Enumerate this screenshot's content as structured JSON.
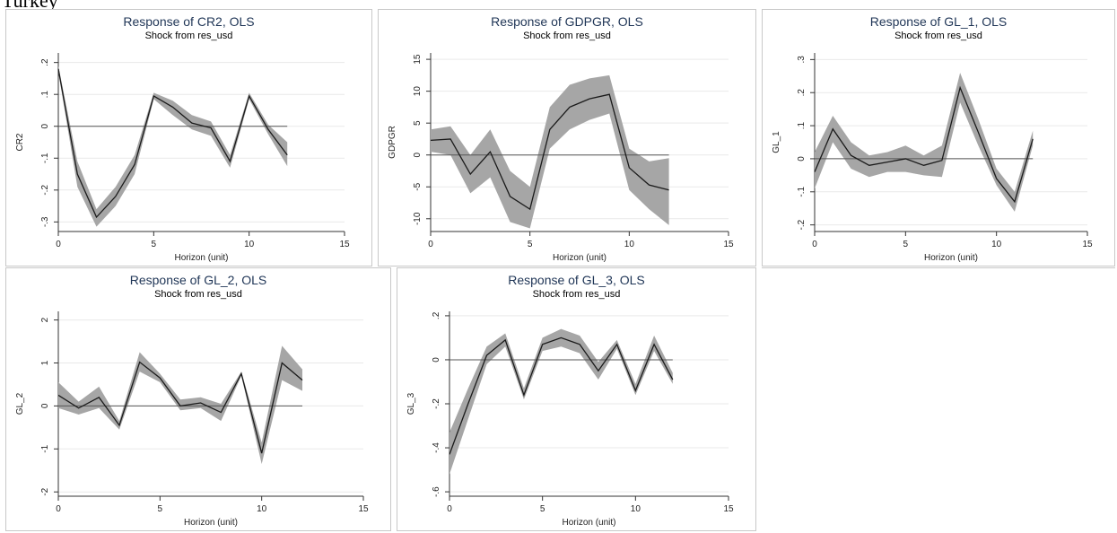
{
  "page": {
    "top_label": "Turkey"
  },
  "chart_data": [
    {
      "type": "line",
      "title": "Response of CR2, OLS",
      "subtitle": "Shock from res_usd",
      "xlabel": "Horizon (unit)",
      "ylabel": "CR2",
      "xlim": [
        0,
        15
      ],
      "ylim": [
        -0.33,
        0.23
      ],
      "xticks": [
        0,
        5,
        10,
        15
      ],
      "xtick_labels": [
        "0",
        "5",
        "10",
        "15"
      ],
      "yticks": [
        -0.3,
        -0.2,
        -0.1,
        0,
        0.1,
        0.2
      ],
      "ytick_labels": [
        "-.3",
        "-.2",
        "-.1",
        "0",
        ".1",
        ".2"
      ],
      "grid": true,
      "zero_line": true,
      "x": [
        0,
        1,
        2,
        3,
        4,
        5,
        6,
        7,
        8,
        9,
        10,
        11,
        12
      ],
      "series": [
        {
          "values": [
            0.18,
            -0.15,
            -0.285,
            -0.22,
            -0.12,
            0.095,
            0.06,
            0.01,
            -0.005,
            -0.11,
            0.095,
            -0.01,
            -0.09
          ]
        }
      ],
      "band_lower": [
        0.17,
        -0.19,
        -0.315,
        -0.25,
        -0.15,
        0.085,
        0.035,
        -0.01,
        -0.03,
        -0.13,
        0.085,
        -0.025,
        -0.125
      ],
      "band_upper": [
        0.19,
        -0.11,
        -0.26,
        -0.19,
        -0.09,
        0.105,
        0.08,
        0.035,
        0.015,
        -0.09,
        0.105,
        0.005,
        -0.05
      ]
    },
    {
      "type": "line",
      "title": "Response of GDPGR, OLS",
      "subtitle": "Shock from res_usd",
      "xlabel": "Horizon (unit)",
      "ylabel": "GDPGR",
      "xlim": [
        0,
        15
      ],
      "ylim": [
        -12,
        16
      ],
      "xticks": [
        0,
        5,
        10,
        15
      ],
      "xtick_labels": [
        "0",
        "5",
        "10",
        "15"
      ],
      "yticks": [
        -10,
        -5,
        0,
        5,
        10,
        15
      ],
      "ytick_labels": [
        "-10",
        "-5",
        "0",
        "5",
        "10",
        "15"
      ],
      "grid": true,
      "zero_line": true,
      "x": [
        0,
        1,
        2,
        3,
        4,
        5,
        6,
        7,
        8,
        9,
        10,
        11,
        12
      ],
      "series": [
        {
          "values": [
            2.3,
            2.5,
            -3.0,
            0.5,
            -6.5,
            -8.5,
            4.0,
            7.5,
            8.8,
            9.5,
            -2.0,
            -4.7,
            -5.5
          ]
        }
      ],
      "band_lower": [
        0.5,
        0.0,
        -6.0,
        -3.5,
        -10.5,
        -11.5,
        1.0,
        4.0,
        5.5,
        6.5,
        -5.5,
        -8.5,
        -11.0
      ],
      "band_upper": [
        4.0,
        4.5,
        0.0,
        4.0,
        -2.5,
        -5.0,
        7.5,
        11.0,
        12.0,
        12.5,
        1.0,
        -1.0,
        -0.5
      ]
    },
    {
      "type": "line",
      "title": "Response of GL_1, OLS",
      "subtitle": "Shock from res_usd",
      "xlabel": "Horizon (unit)",
      "ylabel": "GL_1",
      "xlim": [
        0,
        15
      ],
      "ylim": [
        -0.22,
        0.32
      ],
      "xticks": [
        0,
        5,
        10,
        15
      ],
      "xtick_labels": [
        "0",
        "5",
        "10",
        "15"
      ],
      "yticks": [
        -0.2,
        -0.1,
        0,
        0.1,
        0.2,
        0.3
      ],
      "ytick_labels": [
        "-.2",
        "-.1",
        "0",
        ".1",
        ".2",
        ".3"
      ],
      "grid": true,
      "zero_line": true,
      "x": [
        0,
        1,
        2,
        3,
        4,
        5,
        6,
        7,
        8,
        9,
        10,
        11,
        12
      ],
      "series": [
        {
          "values": [
            -0.04,
            0.09,
            0.01,
            -0.02,
            -0.01,
            0.0,
            -0.02,
            -0.005,
            0.215,
            0.08,
            -0.06,
            -0.13,
            0.06
          ]
        }
      ],
      "band_lower": [
        -0.09,
        0.05,
        -0.03,
        -0.055,
        -0.04,
        -0.04,
        -0.05,
        -0.055,
        0.17,
        0.04,
        -0.08,
        -0.16,
        0.04
      ],
      "band_upper": [
        0.02,
        0.13,
        0.05,
        0.01,
        0.02,
        0.04,
        0.01,
        0.04,
        0.26,
        0.12,
        -0.03,
        -0.1,
        0.085
      ]
    },
    {
      "type": "line",
      "title": "Response of GL_2, OLS",
      "subtitle": "Shock from res_usd",
      "xlabel": "Horizon (unit)",
      "ylabel": "GL_2",
      "xlim": [
        0,
        15
      ],
      "ylim": [
        -2.1,
        2.2
      ],
      "xticks": [
        0,
        5,
        10,
        15
      ],
      "xtick_labels": [
        "0",
        "5",
        "10",
        "15"
      ],
      "yticks": [
        -2,
        -1,
        0,
        1,
        2
      ],
      "ytick_labels": [
        "-2",
        "-1",
        "0",
        "1",
        "2"
      ],
      "grid": true,
      "zero_line": true,
      "x": [
        0,
        1,
        2,
        3,
        4,
        5,
        6,
        7,
        8,
        9,
        10,
        11,
        12
      ],
      "series": [
        {
          "values": [
            0.25,
            -0.05,
            0.2,
            -0.45,
            1.02,
            0.65,
            0.0,
            0.07,
            -0.15,
            0.75,
            -1.1,
            1.0,
            0.6
          ]
        }
      ],
      "band_lower": [
        -0.05,
        -0.2,
        -0.05,
        -0.55,
        0.8,
        0.55,
        -0.1,
        -0.05,
        -0.35,
        0.7,
        -1.35,
        0.6,
        0.35
      ],
      "band_upper": [
        0.55,
        0.1,
        0.45,
        -0.35,
        1.25,
        0.75,
        0.15,
        0.2,
        0.05,
        0.8,
        -0.85,
        1.4,
        0.85
      ]
    },
    {
      "type": "line",
      "title": "Response of GL_3, OLS",
      "subtitle": "Shock from res_usd",
      "xlabel": "Horizon (unit)",
      "ylabel": "GL_3",
      "xlim": [
        0,
        15
      ],
      "ylim": [
        -0.62,
        0.22
      ],
      "xticks": [
        0,
        5,
        10,
        15
      ],
      "xtick_labels": [
        "0",
        "5",
        "10",
        "15"
      ],
      "yticks": [
        -0.6,
        -0.4,
        -0.2,
        0,
        0.2
      ],
      "ytick_labels": [
        "-.6",
        "-.4",
        "-.2",
        "0",
        ".2"
      ],
      "grid": true,
      "zero_line": true,
      "x": [
        0,
        1,
        2,
        3,
        4,
        5,
        6,
        7,
        8,
        9,
        10,
        11,
        12
      ],
      "series": [
        {
          "values": [
            -0.43,
            -0.2,
            0.02,
            0.09,
            -0.16,
            0.07,
            0.1,
            0.07,
            -0.05,
            0.07,
            -0.14,
            0.07,
            -0.09
          ]
        }
      ],
      "band_lower": [
        -0.52,
        -0.27,
        -0.02,
        0.06,
        -0.18,
        0.04,
        0.06,
        0.03,
        -0.09,
        0.05,
        -0.16,
        0.04,
        -0.11
      ],
      "band_upper": [
        -0.33,
        -0.13,
        0.06,
        0.12,
        -0.13,
        0.1,
        0.14,
        0.11,
        -0.01,
        0.09,
        -0.11,
        0.11,
        -0.06
      ]
    }
  ],
  "style": {
    "band_color": "#a6a6a6",
    "line_color": "#1a1a1a",
    "zero_line_color": "#555555",
    "grid_color": "#e9e9e9",
    "title_color": "#1f3556"
  }
}
